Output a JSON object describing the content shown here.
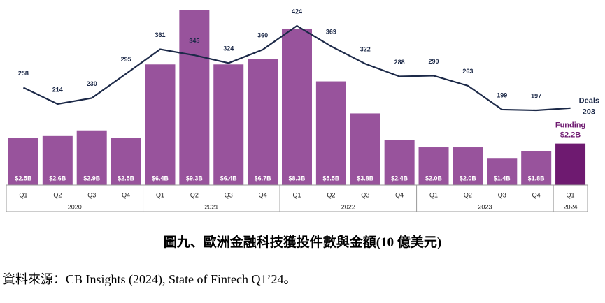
{
  "chart_data": {
    "type": "combo",
    "categories": [
      "Q1",
      "Q2",
      "Q3",
      "Q4",
      "Q1",
      "Q2",
      "Q3",
      "Q4",
      "Q1",
      "Q2",
      "Q3",
      "Q4",
      "Q1",
      "Q2",
      "Q3",
      "Q4",
      "Q1"
    ],
    "x_groups": [
      {
        "label": "2020",
        "start": 0,
        "end": 3
      },
      {
        "label": "2021",
        "start": 4,
        "end": 7
      },
      {
        "label": "2022",
        "start": 8,
        "end": 11
      },
      {
        "label": "2023",
        "start": 12,
        "end": 15
      },
      {
        "label": "2024",
        "start": 16,
        "end": 16
      }
    ],
    "series": [
      {
        "name": "Funding",
        "type": "bar",
        "color": "#98539c",
        "highlight_color": "#6e1a70",
        "values": [
          2.5,
          2.6,
          2.9,
          2.5,
          6.4,
          9.3,
          6.4,
          6.7,
          8.3,
          5.5,
          3.8,
          2.4,
          2.0,
          2.0,
          1.4,
          1.8,
          2.2
        ],
        "value_labels": [
          "$2.5B",
          "$2.6B",
          "$2.9B",
          "$2.5B",
          "$6.4B",
          "$9.3B",
          "$6.4B",
          "$6.7B",
          "$8.3B",
          "$5.5B",
          "$3.8B",
          "$2.4B",
          "$2.0B",
          "$2.0B",
          "$1.4B",
          "$1.8B",
          "$2.2B"
        ]
      },
      {
        "name": "Deals",
        "type": "line",
        "color": "#1c2948",
        "values": [
          258,
          214,
          230,
          295,
          361,
          345,
          324,
          360,
          424,
          369,
          322,
          288,
          290,
          263,
          199,
          197,
          203
        ]
      }
    ]
  },
  "caption": "圖九、歐洲金融科技獲投件數與金額(10 億美元)",
  "source": "資料來源：CB Insights (2024), State of Fintech Q1’24。"
}
